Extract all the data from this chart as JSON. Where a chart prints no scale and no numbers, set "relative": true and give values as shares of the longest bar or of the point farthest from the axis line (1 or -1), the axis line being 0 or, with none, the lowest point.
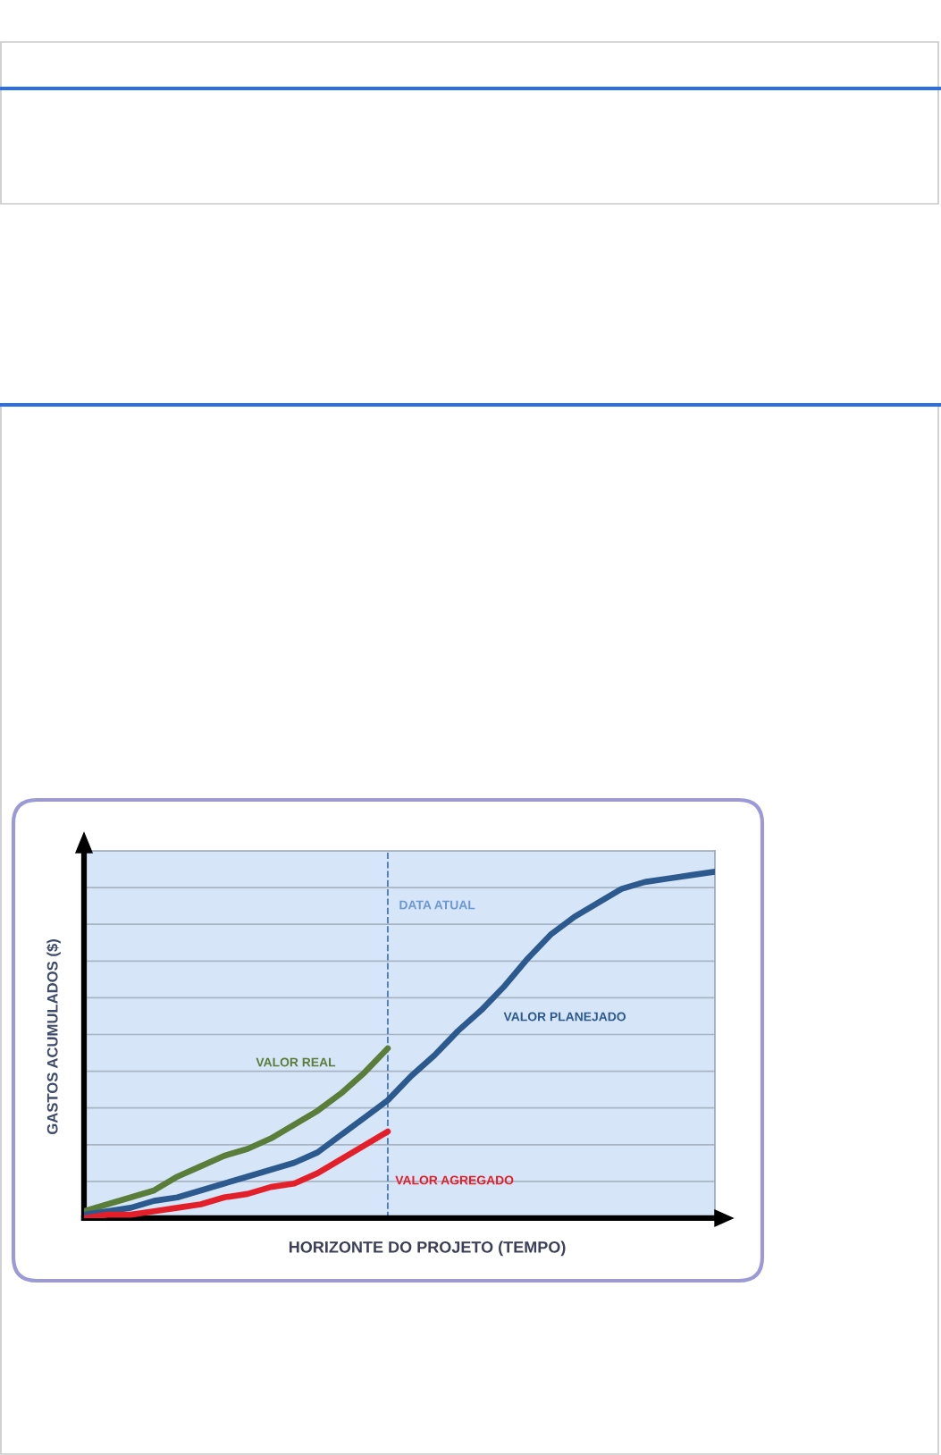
{
  "chart_data": {
    "type": "line",
    "relative": true,
    "xlabel": "HORIZONTE DO PROJETO (TEMPO)",
    "ylabel": "GASTOS ACUMULADOS ($)",
    "grid": "y",
    "line_style": "solid",
    "categories": [
      null,
      null,
      null,
      null,
      null,
      null,
      null,
      null,
      null,
      null,
      null,
      null,
      null,
      null,
      null,
      null,
      null,
      null,
      null,
      null,
      null,
      null,
      null,
      null,
      null,
      null,
      null,
      null
    ],
    "series": [
      {
        "name": "VALOR REAL",
        "color": "#5a7d3a",
        "values": [
          0.02,
          0.04,
          0.06,
          0.08,
          0.12,
          0.15,
          0.18,
          0.2,
          0.23,
          0.27,
          0.31,
          0.36,
          0.42,
          0.49,
          null,
          null,
          null,
          null,
          null,
          null,
          null,
          null,
          null,
          null,
          null,
          null,
          null,
          null
        ]
      },
      {
        "name": "VALOR PLANEJADO",
        "color": "#2d5a8e",
        "values": [
          0.01,
          0.02,
          0.03,
          0.05,
          0.06,
          0.08,
          0.1,
          0.12,
          0.14,
          0.16,
          0.19,
          0.24,
          0.29,
          0.34,
          0.41,
          0.47,
          0.54,
          0.6,
          0.67,
          0.75,
          0.82,
          0.87,
          0.91,
          0.95,
          0.97,
          0.98,
          0.99,
          1
        ]
      },
      {
        "name": "VALOR AGREGADO",
        "color": "#e3202a",
        "values": [
          0,
          0.01,
          0.01,
          0.02,
          0.03,
          0.04,
          0.06,
          0.07,
          0.09,
          0.1,
          0.13,
          0.17,
          0.21,
          0.25,
          null,
          null,
          null,
          null,
          null,
          null,
          null,
          null,
          null,
          null,
          null,
          null,
          null,
          null
        ]
      }
    ],
    "annotations": [
      "DATA ATUAL"
    ]
  }
}
